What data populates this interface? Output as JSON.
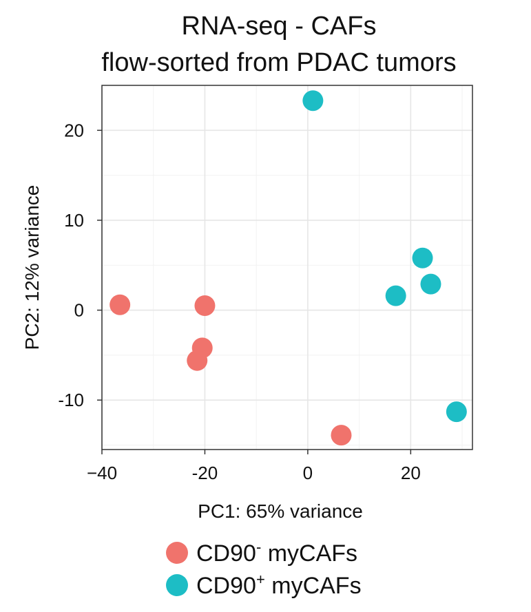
{
  "chart_data": {
    "type": "scatter",
    "title": [
      "RNA-seq - CAFs",
      "flow-sorted from PDAC tumors"
    ],
    "xlabel": "PC1: 65% variance",
    "ylabel": "PC2: 12% variance",
    "xlim": [
      -40,
      32
    ],
    "ylim": [
      -15.5,
      25
    ],
    "x_ticks": [
      -40,
      -20,
      0,
      20
    ],
    "x_tick_labels": [
      "−40",
      "-20",
      "0",
      "20"
    ],
    "y_ticks": [
      -10,
      0,
      10,
      20
    ],
    "y_tick_labels": [
      "-10",
      "0",
      "10",
      "20"
    ],
    "grid": true,
    "legend_position": "bottom",
    "series": [
      {
        "name": "CD90",
        "superscript": "-",
        "suffix": " myCAFs",
        "color": "#F0736C",
        "points": [
          {
            "x": -36.5,
            "y": 0.6
          },
          {
            "x": -20.0,
            "y": 0.5
          },
          {
            "x": -20.5,
            "y": -4.2
          },
          {
            "x": -21.5,
            "y": -5.6
          },
          {
            "x": 6.5,
            "y": -13.9
          }
        ]
      },
      {
        "name": "CD90",
        "superscript": "+",
        "suffix": " myCAFs",
        "color": "#1DBDC5",
        "points": [
          {
            "x": 1.0,
            "y": 23.3
          },
          {
            "x": 22.3,
            "y": 5.8
          },
          {
            "x": 23.9,
            "y": 2.9
          },
          {
            "x": 17.1,
            "y": 1.6
          },
          {
            "x": 28.9,
            "y": -11.3
          }
        ]
      }
    ]
  }
}
